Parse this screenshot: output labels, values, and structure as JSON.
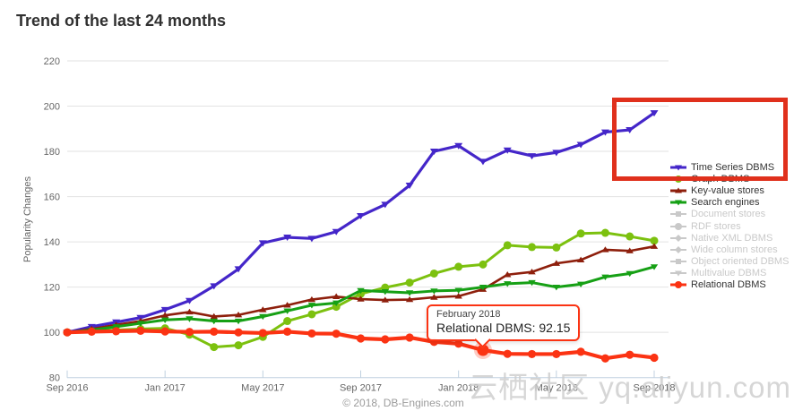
{
  "title": "Trend of the last 24 months",
  "watermark": "云栖社区 yq.aliyun.com",
  "footer": "© 2018, DB-Engines.com",
  "tooltip": {
    "line1": "February 2018",
    "line2": "Relational DBMS: 92.15",
    "series": "Relational DBMS",
    "value": 92.15,
    "border_color": "#fb3313"
  },
  "annotations": {
    "box_color": "#e0301c",
    "highlight": {
      "series": "Relational DBMS",
      "point_index": 17
    }
  },
  "chart_data": {
    "type": "line",
    "title": "Trend of the last 24 months",
    "xlabel": "",
    "ylabel": "Popularity Changes",
    "ylim": [
      80,
      220
    ],
    "ytick_interval": 20,
    "grid": true,
    "legend_position": "right",
    "x_tick_labels": [
      "Sep 2016",
      "Jan 2017",
      "May 2017",
      "Sep 2017",
      "Jan 2018",
      "May 2018",
      "Sep 2018"
    ],
    "x_tick_indices": [
      0,
      4,
      8,
      12,
      16,
      20,
      24
    ],
    "x": [
      "Sep 2016",
      "Oct 2016",
      "Nov 2016",
      "Dec 2016",
      "Jan 2017",
      "Feb 2017",
      "Mar 2017",
      "Apr 2017",
      "May 2017",
      "Jun 2017",
      "Jul 2017",
      "Aug 2017",
      "Sep 2017",
      "Oct 2017",
      "Nov 2017",
      "Dec 2017",
      "Jan 2018",
      "Feb 2018",
      "Mar 2018",
      "Apr 2018",
      "May 2018",
      "Jun 2018",
      "Jul 2018",
      "Aug 2018",
      "Sep 2018"
    ],
    "series": [
      {
        "name": "Time Series DBMS",
        "color": "#4426c9",
        "marker": "triangle-down",
        "line_width": 3.2,
        "marker_radius": 4.5,
        "values": [
          100,
          102.5,
          104.5,
          106.5,
          110,
          114,
          120.5,
          128,
          139.5,
          142,
          141.5,
          144.5,
          151.5,
          156.5,
          165,
          180,
          182.5,
          175.5,
          180.5,
          178,
          179.5,
          183,
          188.5,
          189.5,
          197
        ]
      },
      {
        "name": "Graph DBMS",
        "color": "#7cc10f",
        "marker": "circle",
        "line_width": 3,
        "marker_radius": 4.5,
        "values": [
          100,
          100.6,
          101,
          101.5,
          101.8,
          99,
          93.5,
          94.3,
          98,
          105,
          108,
          111.3,
          117,
          119.8,
          122,
          126,
          129,
          130,
          138.5,
          137.7,
          137.5,
          143.7,
          144,
          142.4,
          140.5
        ]
      },
      {
        "name": "Key-value stores",
        "color": "#8e1f0c",
        "marker": "triangle-up",
        "line_width": 2.6,
        "marker_radius": 4.2,
        "values": [
          100,
          101.5,
          103.3,
          105,
          107.5,
          109,
          107,
          107.7,
          110,
          112,
          114.5,
          115.8,
          114.7,
          114.3,
          114.5,
          115.5,
          116,
          119,
          125.5,
          126.7,
          130.5,
          132,
          136.5,
          136,
          138
        ]
      },
      {
        "name": "Search engines",
        "color": "#16a015",
        "marker": "triangle-down",
        "line_width": 3,
        "marker_radius": 4.2,
        "values": [
          100,
          101,
          102.5,
          104,
          105.5,
          106,
          105,
          105,
          107,
          109.5,
          112,
          113,
          118.5,
          118,
          117.5,
          118.3,
          118.6,
          120,
          121.5,
          122,
          120,
          121.3,
          124.5,
          126,
          129
        ]
      },
      {
        "name": "Relational DBMS",
        "color": "#fb3313",
        "marker": "circle",
        "line_width": 4.2,
        "marker_radius": 4.6,
        "values": [
          100,
          100.3,
          100.5,
          100.7,
          100.4,
          100.2,
          100.3,
          100,
          99.7,
          100.3,
          99.5,
          99.4,
          97.3,
          96.9,
          97.7,
          95.8,
          95,
          92.15,
          90.5,
          90.4,
          90.4,
          91.4,
          88.5,
          90.1,
          88.8
        ]
      }
    ],
    "legend": [
      {
        "label": "Time Series DBMS",
        "color": "#4426c9",
        "marker": "triangle-down",
        "active": true
      },
      {
        "label": "Graph DBMS",
        "color": "#7cc10f",
        "marker": "circle",
        "active": true
      },
      {
        "label": "Key-value stores",
        "color": "#8e1f0c",
        "marker": "triangle-up",
        "active": true
      },
      {
        "label": "Search engines",
        "color": "#16a015",
        "marker": "triangle-down",
        "active": true
      },
      {
        "label": "Document stores",
        "color": "#c9c9c9",
        "marker": "square",
        "active": false
      },
      {
        "label": "RDF stores",
        "color": "#c9c9c9",
        "marker": "circle",
        "active": false
      },
      {
        "label": "Native XML DBMS",
        "color": "#c9c9c9",
        "marker": "diamond",
        "active": false
      },
      {
        "label": "Wide column stores",
        "color": "#c9c9c9",
        "marker": "diamond",
        "active": false
      },
      {
        "label": "Object oriented DBMS",
        "color": "#c9c9c9",
        "marker": "square",
        "active": false
      },
      {
        "label": "Multivalue DBMS",
        "color": "#c9c9c9",
        "marker": "triangle-down",
        "active": false
      },
      {
        "label": "Relational DBMS",
        "color": "#fb3313",
        "marker": "circle",
        "active": true
      }
    ]
  }
}
